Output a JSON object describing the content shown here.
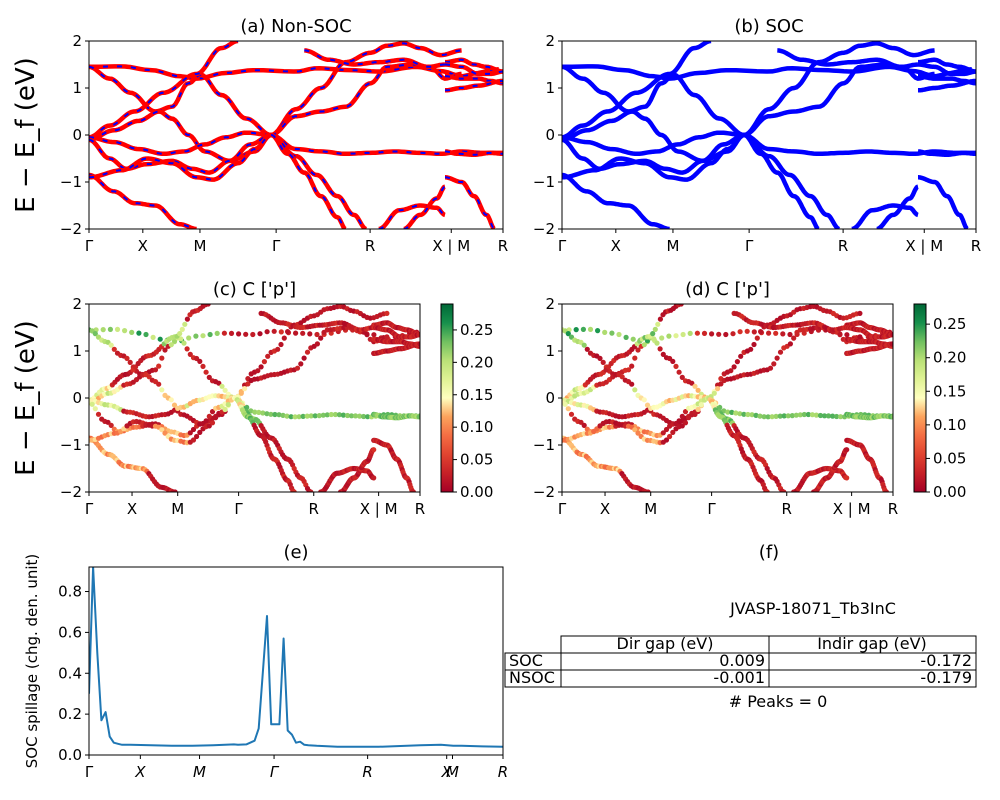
{
  "chart_data": [
    {
      "id": "a",
      "type": "line",
      "title": "(a) Non-SOC",
      "ylabel": "E − E_f (eV)",
      "ylim": [
        -2,
        2
      ],
      "yticks": [
        "2",
        "1",
        "0",
        "−1",
        "−2"
      ],
      "xticks": [
        "Γ",
        "X",
        "M",
        "Γ",
        "R",
        "X | M",
        "R"
      ],
      "series": [
        {
          "color": "#ff0000",
          "dash": "#0000ff",
          "points": [
            [
              0,
              1.45
            ],
            [
              8,
              1.46
            ],
            [
              15,
              1.38
            ],
            [
              22,
              1.25
            ],
            [
              26,
              1.2
            ],
            [
              33,
              1.32
            ],
            [
              40,
              1.38
            ],
            [
              50,
              1.35
            ],
            [
              55,
              1.42
            ],
            [
              63,
              1.38
            ],
            [
              70,
              1.35
            ],
            [
              79,
              1.45
            ],
            [
              85,
              1.36
            ],
            [
              90,
              1.25
            ],
            [
              94,
              1.32
            ],
            [
              97,
              1.38
            ],
            [
              99,
              1.4
            ]
          ]
        },
        {
          "points": [
            [
              0,
              1.45
            ],
            [
              5,
              1.2
            ],
            [
              10,
              0.9
            ],
            [
              16,
              0.5
            ],
            [
              20,
              0.6
            ],
            [
              24,
              1.1
            ],
            [
              27,
              1.28
            ],
            [
              32,
              0.85
            ],
            [
              38,
              0.35
            ],
            [
              44,
              0.0
            ]
          ]
        },
        {
          "points": [
            [
              0,
              -0.05
            ],
            [
              5,
              0.2
            ],
            [
              11,
              0.5
            ],
            [
              18,
              0.9
            ],
            [
              26,
              1.3
            ],
            [
              32,
              1.85
            ],
            [
              36,
              2.0
            ]
          ]
        },
        {
          "points": [
            [
              0,
              -0.1
            ],
            [
              6,
              0.1
            ],
            [
              12,
              0.3
            ],
            [
              17,
              0.5
            ],
            [
              20,
              0.35
            ],
            [
              24,
              0.0
            ],
            [
              28,
              -0.35
            ],
            [
              34,
              -0.55
            ],
            [
              40,
              -0.35
            ],
            [
              44,
              0.0
            ]
          ]
        },
        {
          "points": [
            [
              0,
              -0.05
            ],
            [
              6,
              -0.15
            ],
            [
              12,
              -0.3
            ],
            [
              18,
              -0.4
            ],
            [
              23,
              -0.35
            ],
            [
              28,
              -0.2
            ],
            [
              33,
              -0.05
            ],
            [
              38,
              0.05
            ],
            [
              44,
              0.0
            ]
          ]
        },
        {
          "points": [
            [
              0,
              -0.1
            ],
            [
              5,
              -0.5
            ],
            [
              9,
              -0.72
            ],
            [
              14,
              -0.62
            ],
            [
              20,
              -0.55
            ],
            [
              25,
              -0.72
            ],
            [
              29,
              -0.8
            ],
            [
              34,
              -0.55
            ],
            [
              39,
              -0.2
            ],
            [
              44,
              0.0
            ]
          ]
        },
        {
          "points": [
            [
              0,
              -0.85
            ],
            [
              6,
              -1.2
            ],
            [
              11,
              -1.45
            ],
            [
              16,
              -1.5
            ],
            [
              22,
              -1.9
            ],
            [
              26,
              -2.0
            ]
          ]
        },
        {
          "points": [
            [
              0,
              -0.9
            ],
            [
              8,
              -0.75
            ],
            [
              14,
              -0.5
            ],
            [
              20,
              -0.6
            ],
            [
              26,
              -0.9
            ],
            [
              30,
              -0.95
            ],
            [
              36,
              -0.6
            ],
            [
              40,
              -0.3
            ],
            [
              44,
              0.0
            ]
          ]
        },
        {
          "points": [
            [
              44,
              0.0
            ],
            [
              50,
              0.55
            ],
            [
              56,
              1.0
            ],
            [
              62,
              1.55
            ],
            [
              68,
              1.75
            ],
            [
              72,
              1.9
            ],
            [
              76,
              1.95
            ],
            [
              80,
              1.85
            ],
            [
              85,
              1.7
            ],
            [
              90,
              1.8
            ]
          ]
        },
        {
          "points": [
            [
              44,
              0.0
            ],
            [
              50,
              -0.3
            ],
            [
              56,
              -0.35
            ],
            [
              62,
              -0.4
            ],
            [
              68,
              -0.38
            ],
            [
              74,
              -0.35
            ],
            [
              80,
              -0.38
            ],
            [
              85,
              -0.4
            ],
            [
              90,
              -0.35
            ],
            [
              95,
              -0.38
            ],
            [
              100,
              -0.38
            ]
          ]
        },
        {
          "points": [
            [
              44,
              0.0
            ],
            [
              50,
              -0.45
            ],
            [
              55,
              -0.85
            ],
            [
              60,
              -1.3
            ],
            [
              64,
              -1.7
            ],
            [
              67,
              -2.0
            ]
          ]
        },
        {
          "points": [
            [
              44,
              0.0
            ],
            [
              50,
              0.4
            ],
            [
              56,
              0.5
            ],
            [
              62,
              0.6
            ],
            [
              68,
              1.1
            ],
            [
              72,
              1.45
            ],
            [
              78,
              1.5
            ],
            [
              83,
              1.4
            ],
            [
              86,
              1.2
            ],
            [
              90,
              1.3
            ]
          ]
        },
        {
          "points": [
            [
              44,
              0.0
            ],
            [
              48,
              -0.4
            ],
            [
              52,
              -0.8
            ],
            [
              56,
              -1.3
            ],
            [
              60,
              -1.75
            ],
            [
              62,
              -2.0
            ]
          ]
        },
        {
          "points": [
            [
              70,
              -2.0
            ],
            [
              75,
              -1.6
            ],
            [
              80,
              -1.5
            ],
            [
              84,
              -1.55
            ],
            [
              86,
              -1.7
            ]
          ]
        },
        {
          "points": [
            [
              76,
              -2.0
            ],
            [
              80,
              -1.7
            ],
            [
              84,
              -1.35
            ],
            [
              86,
              -1.1
            ]
          ]
        },
        {
          "points": [
            [
              52,
              1.8
            ],
            [
              58,
              1.6
            ],
            [
              64,
              1.5
            ],
            [
              70,
              1.55
            ],
            [
              76,
              1.6
            ],
            [
              82,
              1.45
            ],
            [
              86,
              1.5
            ]
          ]
        },
        {
          "points": [
            [
              86,
              -0.35
            ],
            [
              89,
              -0.4
            ],
            [
              93,
              -0.42
            ],
            [
              97,
              -0.38
            ],
            [
              100,
              -0.4
            ]
          ]
        },
        {
          "points": [
            [
              86,
              1.55
            ],
            [
              90,
              1.6
            ],
            [
              93,
              1.5
            ],
            [
              96,
              1.45
            ],
            [
              100,
              1.35
            ]
          ]
        },
        {
          "points": [
            [
              86,
              1.25
            ],
            [
              90,
              1.2
            ],
            [
              94,
              1.2
            ],
            [
              97,
              1.15
            ],
            [
              100,
              1.1
            ]
          ]
        },
        {
          "points": [
            [
              86,
              0.95
            ],
            [
              90,
              1.0
            ],
            [
              94,
              1.05
            ],
            [
              100,
              1.15
            ]
          ]
        },
        {
          "points": [
            [
              86,
              -0.9
            ],
            [
              90,
              -1.0
            ],
            [
              93,
              -1.3
            ],
            [
              96,
              -1.7
            ],
            [
              98,
              -2.0
            ]
          ]
        },
        {
          "points": [
            [
              86,
              1.5
            ],
            [
              90,
              1.45
            ],
            [
              94,
              1.3
            ],
            [
              97,
              1.3
            ],
            [
              100,
              1.35
            ]
          ]
        }
      ]
    },
    {
      "id": "b",
      "type": "line",
      "title": "(b) SOC",
      "ylim": [
        -2,
        2
      ],
      "yticks": [
        "2",
        "1",
        "0",
        "−1",
        "−2"
      ],
      "xticks": [
        "Γ",
        "X",
        "M",
        "Γ",
        "R",
        "X | M",
        "R"
      ],
      "color": "#0000ff"
    },
    {
      "id": "c",
      "type": "scatter",
      "title": "(c)  C ['p']",
      "ylabel": "E − E_f (eV)",
      "ylim": [
        -2,
        2
      ],
      "yticks": [
        "2",
        "1",
        "0",
        "−1",
        "−2"
      ],
      "xticks": [
        "Γ",
        "X",
        "M",
        "Γ",
        "R",
        "X | M",
        "R"
      ],
      "colorbar": {
        "ticks": [
          "0.25",
          "0.20",
          "0.15",
          "0.10",
          "0.05",
          "0.00"
        ],
        "vmax": 0.29
      }
    },
    {
      "id": "d",
      "type": "scatter",
      "title": "(d) C ['p']",
      "ylim": [
        -2,
        2
      ],
      "yticks": [
        "2",
        "1",
        "0",
        "−1",
        "−2"
      ],
      "xticks": [
        "Γ",
        "X",
        "M",
        "Γ",
        "R",
        "X | M",
        "R"
      ],
      "colorbar": {
        "ticks": [
          "0.25",
          "0.20",
          "0.15",
          "0.10",
          "0.05",
          "0.00"
        ],
        "vmax": 0.28
      }
    },
    {
      "id": "e",
      "type": "line",
      "title": "(e)",
      "ylabel": "SOC spillage (chg. den. unit)",
      "ylim": [
        0,
        0.92
      ],
      "yticks": [
        "0.8",
        "0.6",
        "0.4",
        "0.2",
        "0.0"
      ],
      "xticks": [
        "Γ",
        "X",
        "M",
        "Γ",
        "R",
        "X",
        "M",
        "R"
      ],
      "color": "#1f77b4",
      "x": [
        0,
        1,
        2,
        3,
        4,
        5,
        6,
        7,
        8,
        10,
        15,
        20,
        25,
        30,
        35,
        36,
        38,
        40,
        41,
        43,
        44,
        45,
        46,
        47,
        48,
        49,
        50,
        51,
        52,
        53,
        55,
        60,
        70,
        80,
        85,
        88,
        90,
        95,
        100
      ],
      "y": [
        0.3,
        0.92,
        0.5,
        0.17,
        0.21,
        0.09,
        0.06,
        0.055,
        0.05,
        0.05,
        0.048,
        0.045,
        0.045,
        0.048,
        0.052,
        0.05,
        0.052,
        0.07,
        0.13,
        0.68,
        0.15,
        0.15,
        0.15,
        0.57,
        0.12,
        0.1,
        0.06,
        0.065,
        0.05,
        0.048,
        0.045,
        0.04,
        0.04,
        0.048,
        0.05,
        0.045,
        0.045,
        0.042,
        0.04
      ]
    }
  ],
  "panel_f": {
    "title": "(f)",
    "formula": "JVASP-18071_Tb3InC",
    "table": {
      "headers": [
        "Dir gap (eV)",
        "Indir gap (eV)"
      ],
      "rows": [
        {
          "label": "SOC",
          "dir": "0.009",
          "indir": "-0.172"
        },
        {
          "label": "NSOC",
          "dir": "-0.001",
          "indir": "-0.179"
        }
      ]
    },
    "peaks": "# Peaks = 0"
  }
}
